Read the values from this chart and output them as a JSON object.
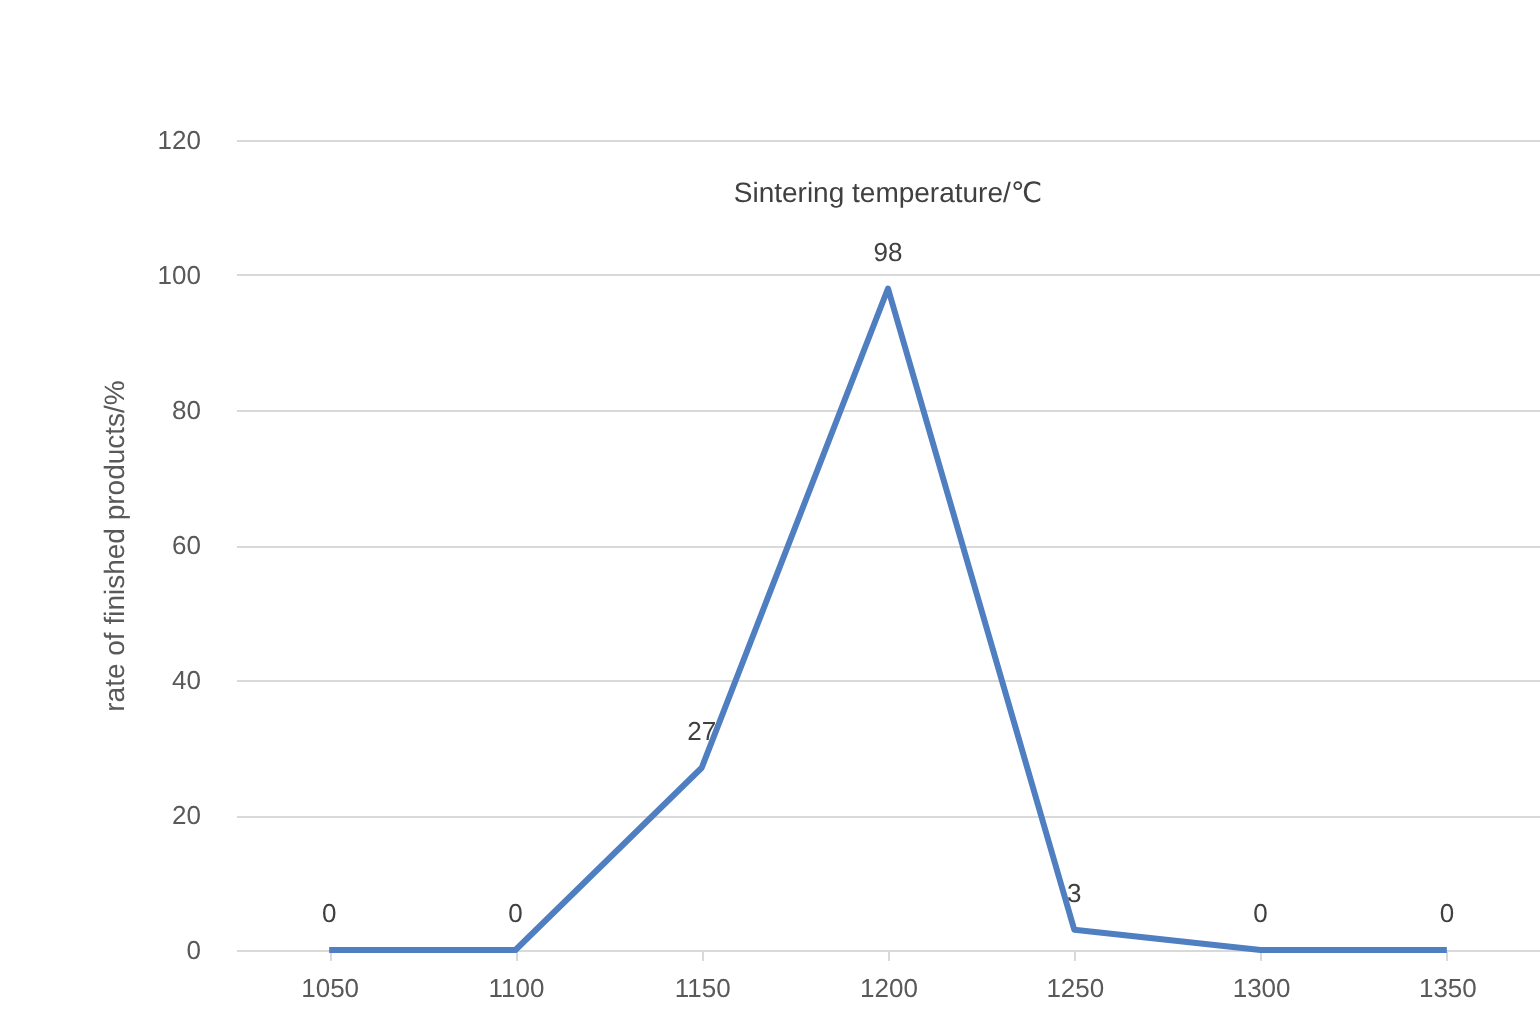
{
  "chart_data": {
    "type": "line",
    "title": "Sintering temperature/℃",
    "ylabel": "rate of finished products/%",
    "categories": [
      "1050",
      "1100",
      "1150",
      "1200",
      "1250",
      "1300",
      "1350"
    ],
    "series": [
      {
        "color": "#4f7fc0",
        "values": [
          0,
          0,
          27,
          98,
          3,
          0,
          0
        ]
      }
    ],
    "ylim": [
      0,
      120
    ],
    "yticks": [
      0,
      20,
      40,
      60,
      80,
      100,
      120
    ],
    "grid": "y",
    "data_labels": true,
    "marker": "none",
    "line_style": "solid",
    "legend": false
  }
}
